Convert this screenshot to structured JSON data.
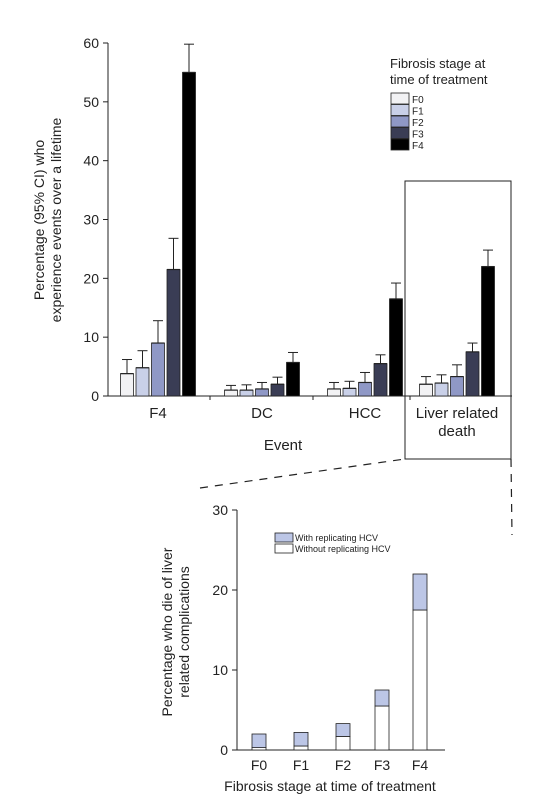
{
  "colors": {
    "F0": "#f2f2f4",
    "F1": "#c9d0e8",
    "F2": "#8f98c6",
    "F3": "#3a3d55",
    "F4": "#000000",
    "replicating": "#bcc6e6",
    "without": "#ffffff"
  },
  "chart_data": [
    {
      "type": "bar",
      "ylabel_lines": [
        "Percentage (95% CI) who",
        "experience events over a lifetime"
      ],
      "xlabel": "Event",
      "ylim": [
        0,
        60
      ],
      "yticks": [
        0,
        10,
        20,
        30,
        40,
        50,
        60
      ],
      "categories": [
        "F4",
        "DC",
        "HCC",
        "Liver related death"
      ],
      "category_label_lines": [
        [
          "F4"
        ],
        [
          "DC"
        ],
        [
          "HCC"
        ],
        [
          "Liver related",
          "death"
        ]
      ],
      "legend": {
        "title_lines": [
          "Fibrosis stage at",
          "time of treatment"
        ],
        "position": "top-right"
      },
      "series": [
        {
          "name": "F0",
          "values": [
            3.8,
            1.0,
            1.2,
            2.0
          ],
          "ci_upper": [
            6.2,
            1.8,
            2.3,
            3.3
          ]
        },
        {
          "name": "F1",
          "values": [
            4.8,
            1.0,
            1.3,
            2.2
          ],
          "ci_upper": [
            7.7,
            1.9,
            2.5,
            3.6
          ]
        },
        {
          "name": "F2",
          "values": [
            9.0,
            1.2,
            2.3,
            3.3
          ],
          "ci_upper": [
            12.8,
            2.3,
            4.0,
            5.3
          ]
        },
        {
          "name": "F3",
          "values": [
            21.5,
            2.0,
            5.5,
            7.5
          ],
          "ci_upper": [
            26.8,
            3.2,
            7.0,
            9.0
          ]
        },
        {
          "name": "F4",
          "values": [
            55.0,
            5.7,
            16.5,
            22.0
          ],
          "ci_upper": [
            59.8,
            7.4,
            19.2,
            24.8
          ]
        }
      ]
    },
    {
      "type": "bar",
      "stacked": true,
      "ylabel_lines": [
        "Percentage who die of liver",
        "related complications"
      ],
      "xlabel": "Fibrosis stage at time of treatment",
      "ylim": [
        0,
        30
      ],
      "yticks": [
        0,
        10,
        20,
        30
      ],
      "categories": [
        "F0",
        "F1",
        "F2",
        "F3",
        "F4"
      ],
      "series": [
        {
          "name": "Without replicating HCV",
          "values": [
            0.3,
            0.5,
            1.7,
            5.5,
            17.5
          ]
        },
        {
          "name": "With replicating HCV",
          "values": [
            1.7,
            1.7,
            1.6,
            2.0,
            4.5
          ]
        }
      ],
      "legend": {
        "position": "top"
      }
    }
  ]
}
